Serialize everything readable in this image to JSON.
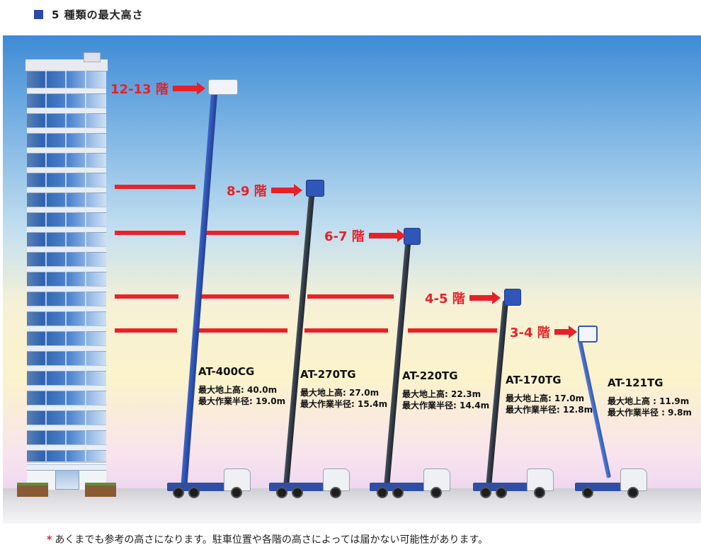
{
  "header": {
    "title": "5 種類の最大高さ"
  },
  "floors": [
    {
      "id": "f1213",
      "label": "12-13 階"
    },
    {
      "id": "f89",
      "label": "8-9 階"
    },
    {
      "id": "f67",
      "label": "6-7 階"
    },
    {
      "id": "f45",
      "label": "4-5 階"
    },
    {
      "id": "f34",
      "label": "3-4 階"
    }
  ],
  "models": [
    {
      "name": "AT-400CG",
      "height_text": "最大地上高: 40.0m",
      "radius_text": "最大作業半径: 19.0m",
      "max_height_m": 40.0,
      "max_radius_m": 19.0,
      "color": "#2f56b8"
    },
    {
      "name": "AT-270TG",
      "height_text": "最大地上高: 27.0m",
      "radius_text": "最大作業半径: 15.4m",
      "max_height_m": 27.0,
      "max_radius_m": 15.4,
      "color": "#2a2f3a"
    },
    {
      "name": "AT-220TG",
      "height_text": "最大地上高: 22.3m",
      "radius_text": "最大作業半径: 14.4m",
      "max_height_m": 22.3,
      "max_radius_m": 14.4,
      "color": "#2a2f3a"
    },
    {
      "name": "AT-170TG",
      "height_text": "最大地上高: 17.0m",
      "radius_text": "最大作業半径: 12.8m",
      "max_height_m": 17.0,
      "max_radius_m": 12.8,
      "color": "#2a2f3a"
    },
    {
      "name": "AT-121TG",
      "height_text": "最大地上高 : 11.9m",
      "radius_text": "最大作業半径 : 9.8m",
      "max_height_m": 11.9,
      "max_radius_m": 9.8,
      "color": "#2f56b8"
    }
  ],
  "note": {
    "mark": "*",
    "text": "あくまでも参考の高さになります。駐車位置や各階の高さによっては届かない可能性があります。"
  },
  "colors": {
    "accent_red": "#e62128",
    "header_square": "#2b4aa6",
    "sky_top": "#3f8bd6",
    "sky_bottom": "#e4ccf2"
  }
}
